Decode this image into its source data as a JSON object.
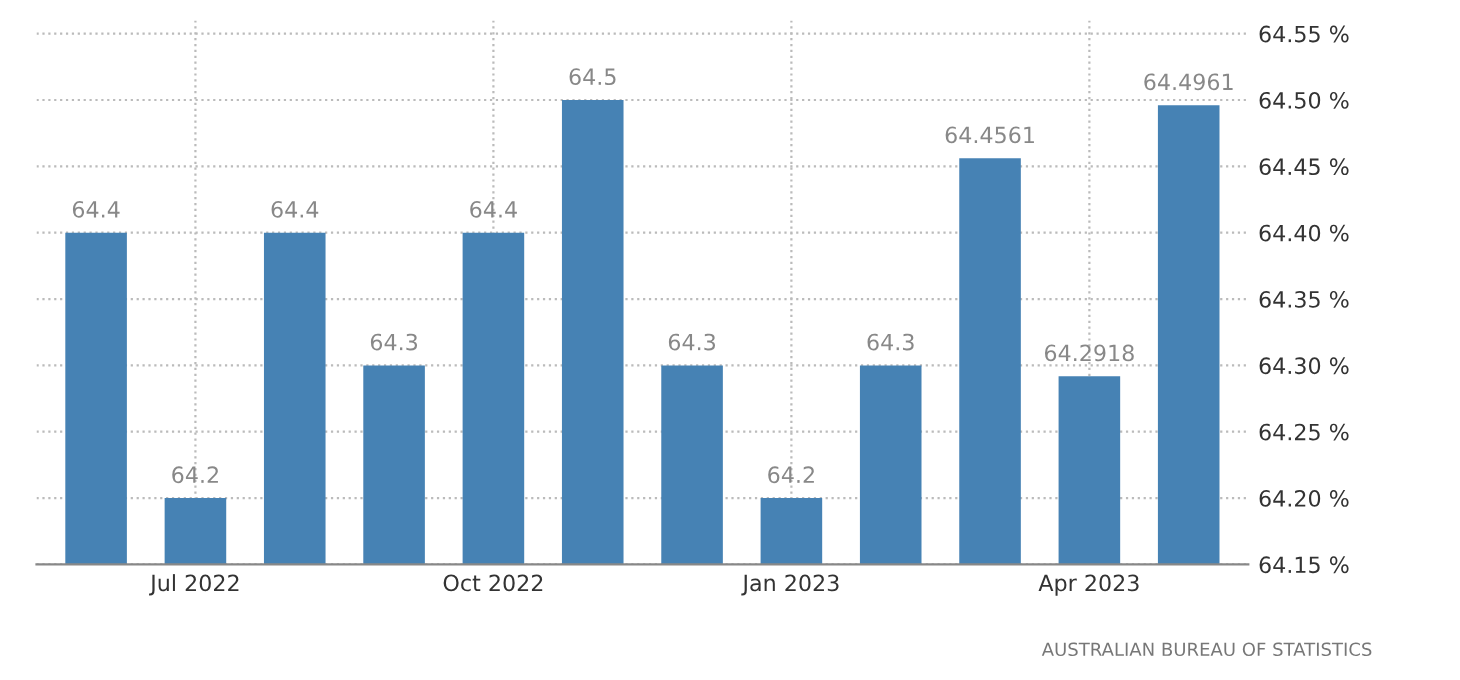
{
  "chart_data": {
    "type": "bar",
    "categories": [
      null,
      "Jul 2022",
      null,
      null,
      "Oct 2022",
      null,
      null,
      "Jan 2023",
      null,
      null,
      "Apr 2023",
      null
    ],
    "values": [
      64.4,
      64.2,
      64.4,
      64.3,
      64.4,
      64.5,
      64.3,
      64.2,
      64.3,
      64.4561,
      64.2918,
      64.4961
    ],
    "color": "#4682b4",
    "data_labels": true,
    "ylim": [
      64.15,
      64.56
    ],
    "yticks": [
      {
        "value": 64.15,
        "label": "64.15 %"
      },
      {
        "value": 64.2,
        "label": "64.20 %"
      },
      {
        "value": 64.25,
        "label": "64.25 %"
      },
      {
        "value": 64.3,
        "label": "64.30 %"
      },
      {
        "value": 64.35,
        "label": "64.35 %"
      },
      {
        "value": 64.4,
        "label": "64.40 %"
      },
      {
        "value": 64.45,
        "label": "64.45 %"
      },
      {
        "value": 64.5,
        "label": "64.50 %"
      },
      {
        "value": 64.55,
        "label": "64.55 %"
      }
    ],
    "grid": true,
    "annotations": [
      "AUSTRALIAN BUREAU OF STATISTICS"
    ]
  }
}
